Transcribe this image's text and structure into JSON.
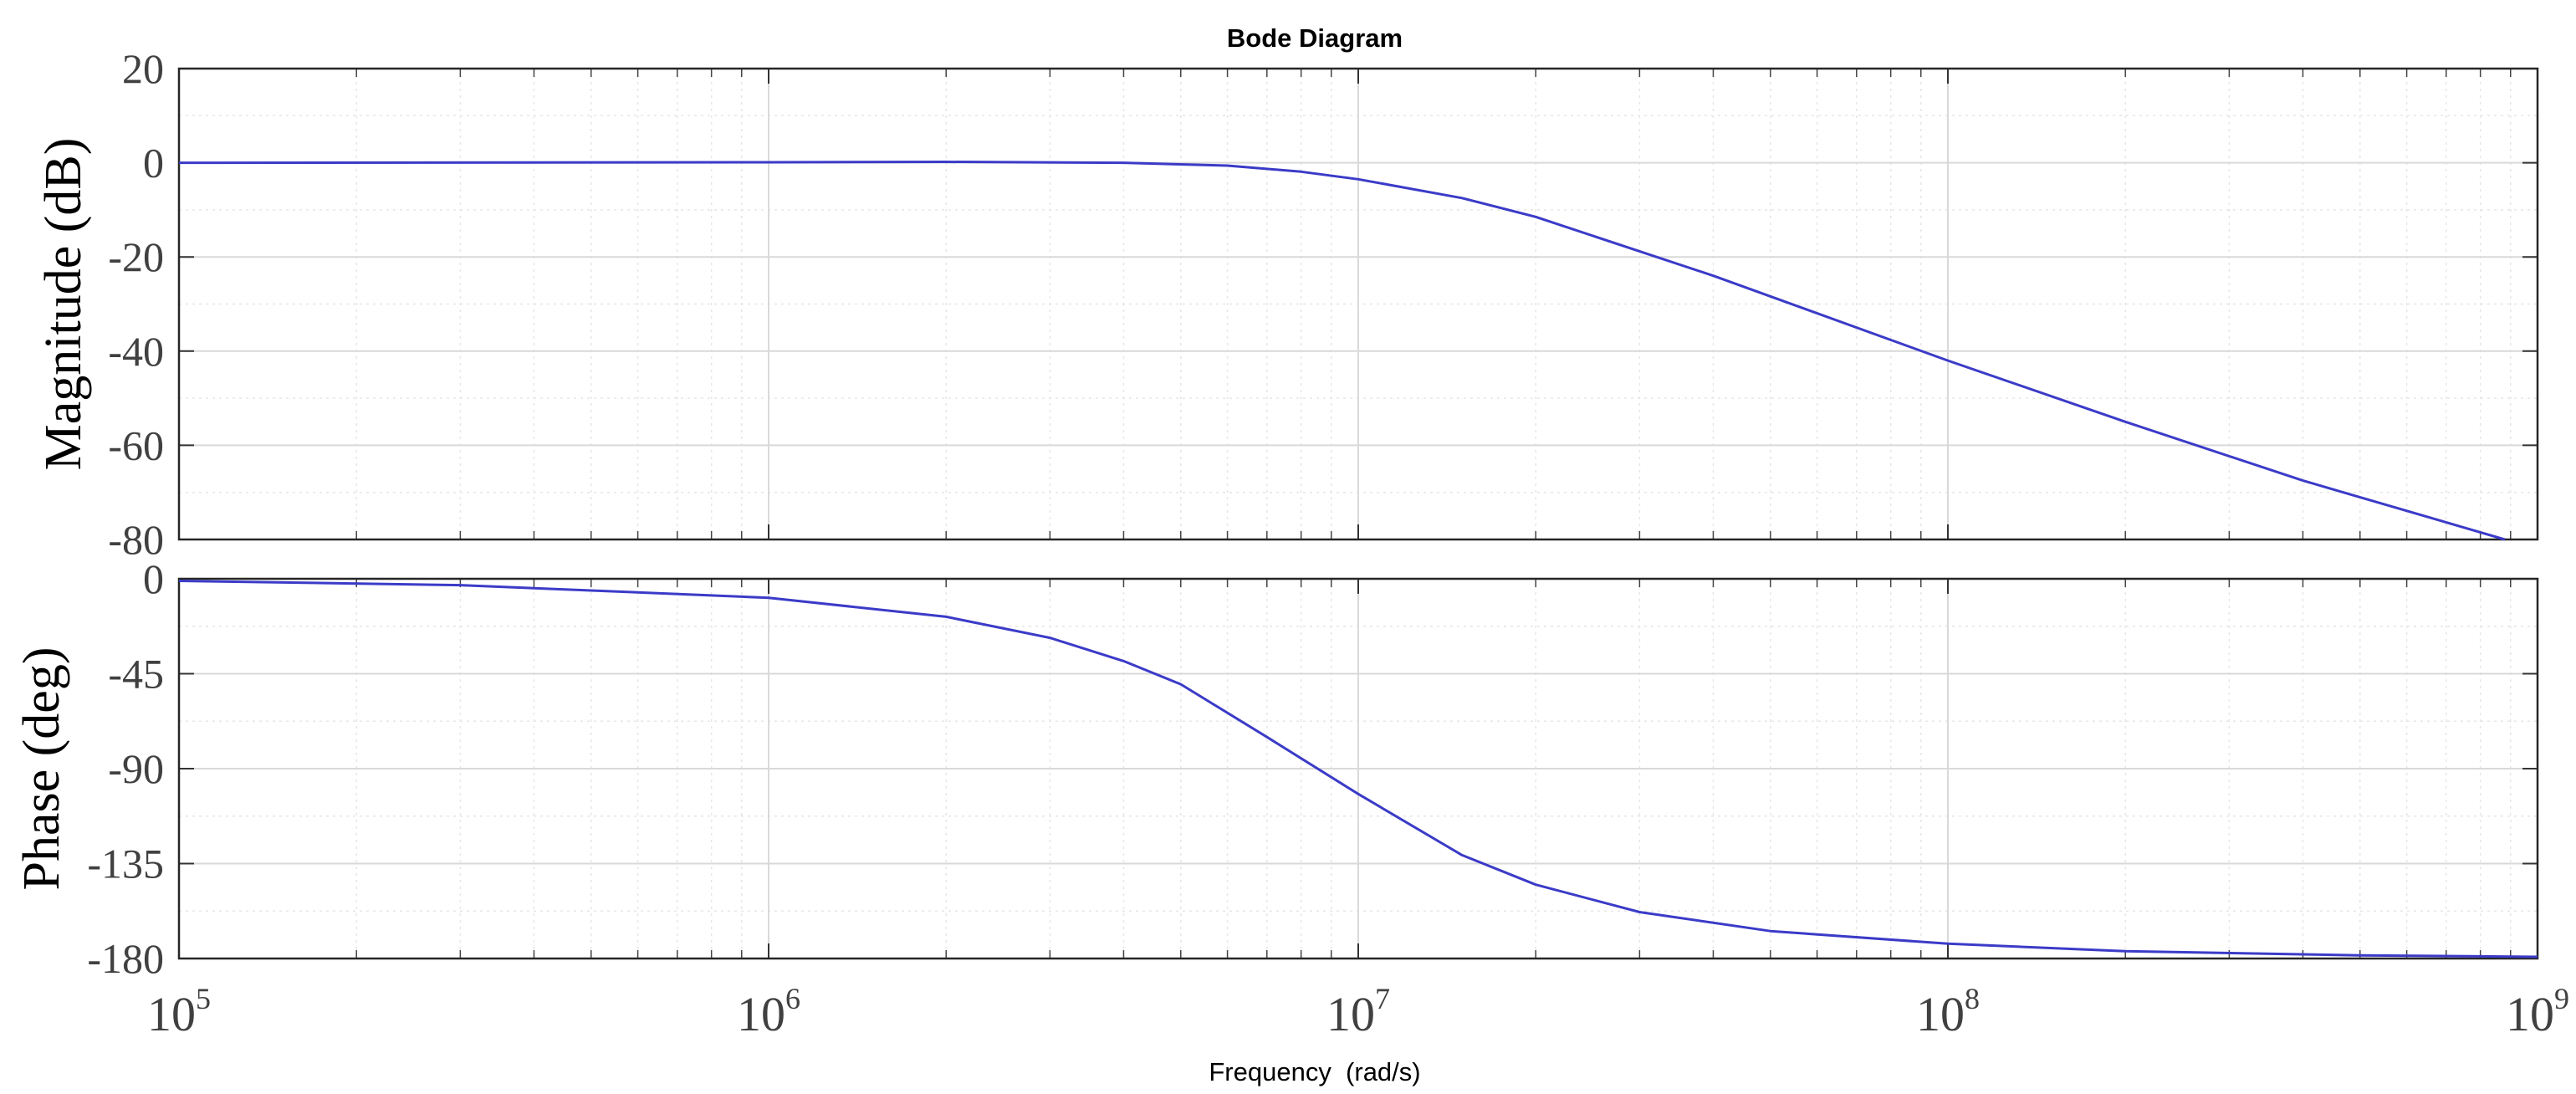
{
  "chart_data": {
    "type": "line",
    "title": "Bode Diagram",
    "xlabel": "Frequency  (rad/s)",
    "x_scale": "log",
    "xlim": [
      100000,
      1000000000
    ],
    "x_ticks": [
      {
        "base": "10",
        "exp": "5"
      },
      {
        "base": "10",
        "exp": "6"
      },
      {
        "base": "10",
        "exp": "7"
      },
      {
        "base": "10",
        "exp": "8"
      },
      {
        "base": "10",
        "exp": "9"
      }
    ],
    "grid": true,
    "line_color": "#3b3bc8",
    "panels": [
      {
        "name": "magnitude",
        "ylabel": "Magnitude (dB)",
        "ylim": [
          -80,
          20
        ],
        "yticks": [
          "20",
          "0",
          "-20",
          "-40",
          "-60",
          "-80"
        ],
        "ytick_values": [
          20,
          0,
          -20,
          -40,
          -60,
          -80
        ],
        "x": [
          100000,
          1000000,
          2000000,
          4000000,
          6000000,
          8000000,
          10000000,
          15000000,
          20000000,
          40000000,
          100000000,
          200000000,
          400000000,
          880000000
        ],
        "y": [
          0,
          0.1,
          0.2,
          0,
          -0.6,
          -1.9,
          -3.5,
          -7.5,
          -11.5,
          -24,
          -42,
          -55,
          -67.5,
          -80
        ]
      },
      {
        "name": "phase",
        "ylabel": "Phase (deg)",
        "ylim": [
          -180,
          0
        ],
        "yticks": [
          "0",
          "-45",
          "-90",
          "-135",
          "-180"
        ],
        "ytick_values": [
          0,
          -45,
          -90,
          -135,
          -180
        ],
        "x": [
          100000,
          300000,
          1000000,
          2000000,
          3000000,
          4000000,
          5000000,
          7000000,
          10000000,
          15000000,
          20000000,
          30000000,
          50000000,
          100000000,
          200000000,
          500000000,
          1000000000
        ],
        "y": [
          -1,
          -3,
          -9,
          -18,
          -28,
          -39,
          -50,
          -75,
          -102,
          -131,
          -145,
          -158,
          -167,
          -173,
          -176.5,
          -178.5,
          -179.2
        ]
      }
    ]
  }
}
